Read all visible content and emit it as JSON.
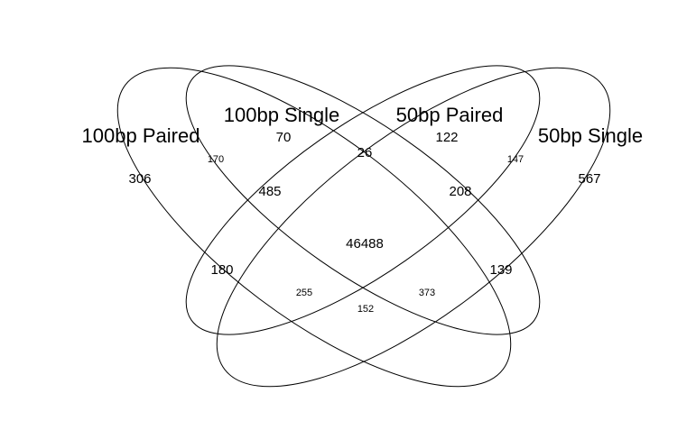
{
  "sets": [
    {
      "key": "A",
      "label": "100bp Paired"
    },
    {
      "key": "B",
      "label": "100bp Single"
    },
    {
      "key": "C",
      "label": "50bp Paired"
    },
    {
      "key": "D",
      "label": "50bp Single"
    }
  ],
  "regions": {
    "A": "306",
    "B": "70",
    "C": "122",
    "D": "567",
    "AB": "170",
    "BC": "26",
    "CD": "147",
    "BC_A": "485",
    "BC_D": "208",
    "ABCD": "46488",
    "AC": "180",
    "BD": "139",
    "ACD": "255",
    "ABD": "373",
    "AD": "152"
  }
}
